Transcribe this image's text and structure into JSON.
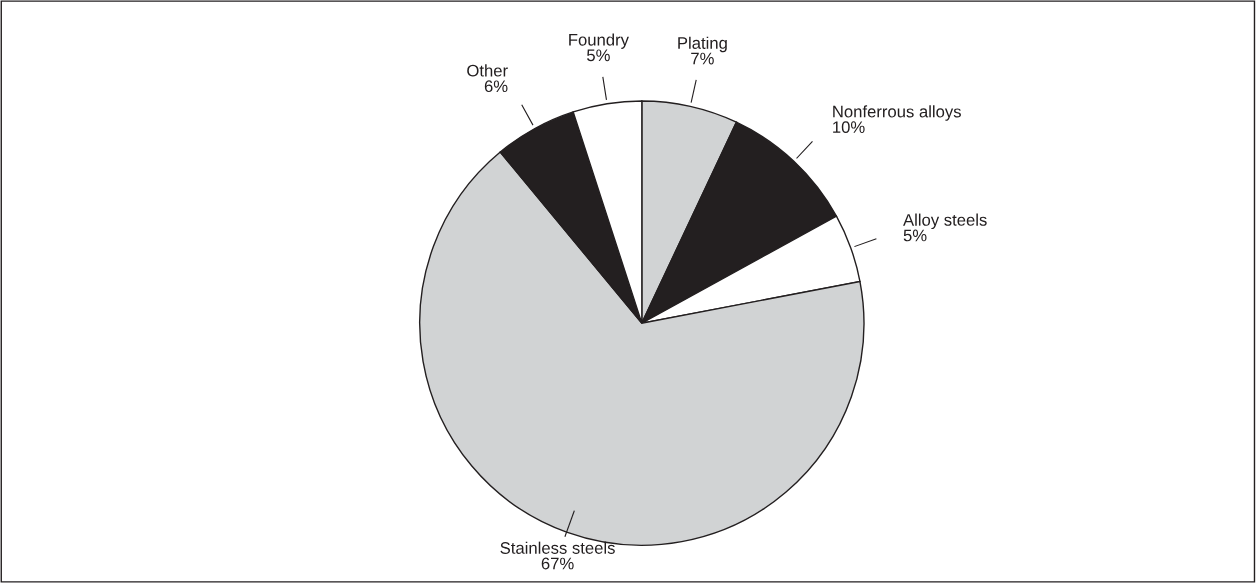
{
  "chart_data": {
    "type": "pie",
    "categories": [
      "Plating",
      "Nonferrous alloys",
      "Alloy steels",
      "Stainless steels",
      "Other",
      "Foundry"
    ],
    "values": [
      7,
      10,
      5,
      67,
      6,
      5
    ],
    "value_labels": [
      "7%",
      "10%",
      "5%",
      "67%",
      "6%",
      "5%"
    ],
    "colors": [
      "#d1d3d4",
      "#231f20",
      "#ffffff",
      "#d1d3d4",
      "#231f20",
      "#ffffff"
    ],
    "legend": false
  }
}
